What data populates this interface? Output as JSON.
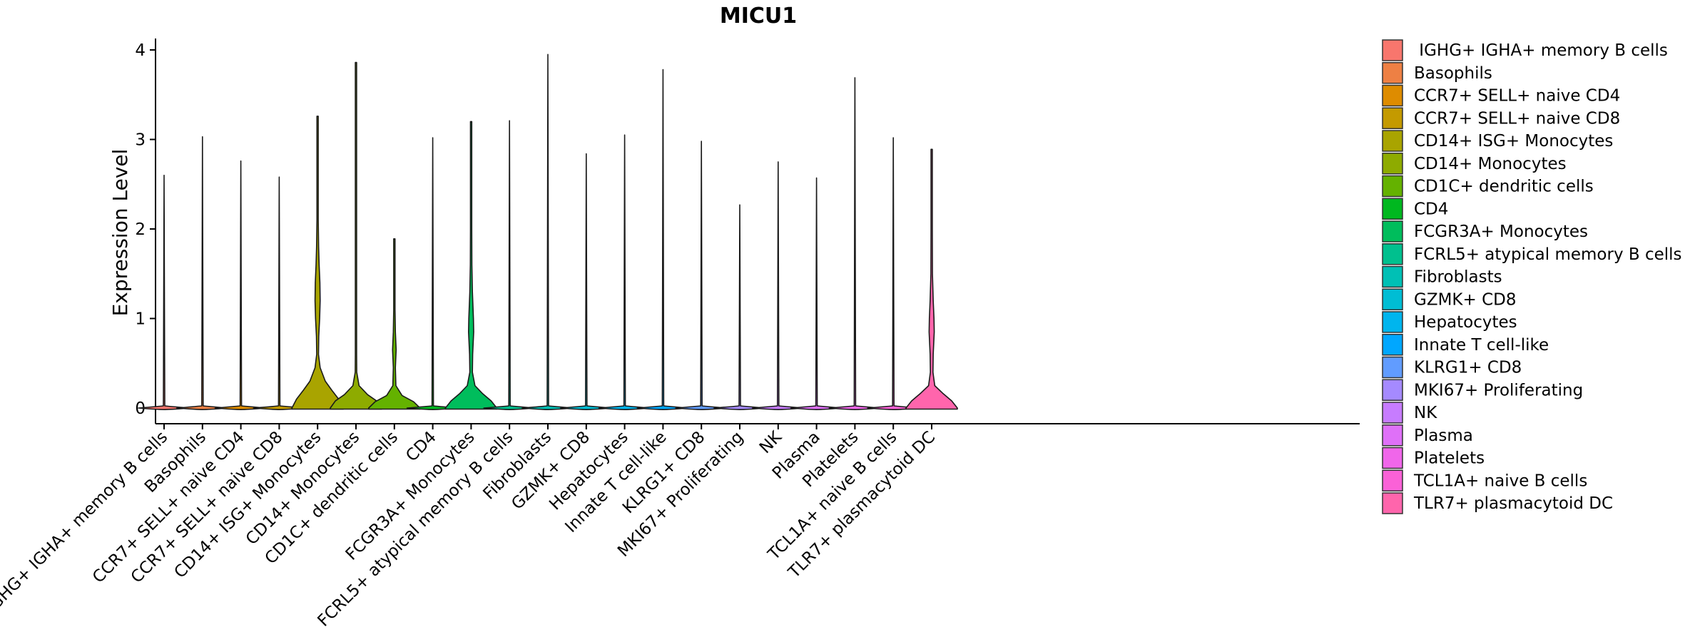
{
  "chart_data": {
    "type": "violin",
    "title": "MICU1",
    "xlabel": "",
    "ylabel": "Expression Level",
    "ylim": [
      -0.2,
      4.15
    ],
    "yticks": [
      0,
      1,
      2,
      3,
      4
    ],
    "legend_position": "right",
    "categories": [
      {
        "name": " IGHG+ IGHA+ memory B cells",
        "color": "#F8766D",
        "max": 2.6,
        "shape": []
      },
      {
        "name": "Basophils",
        "color": "#EE8044",
        "max": 3.03,
        "shape": []
      },
      {
        "name": "CCR7+ SELL+ naive CD4",
        "color": "#DE8C00",
        "max": 2.76,
        "shape": []
      },
      {
        "name": "CCR7+ SELL+ naive CD8",
        "color": "#C49A00",
        "max": 2.58,
        "shape": []
      },
      {
        "name": "CD14+ ISG+ Monocytes",
        "color": "#A9A400",
        "max": 3.26,
        "shape": [
          [
            0,
            1.0
          ],
          [
            0.1,
            0.82
          ],
          [
            0.2,
            0.55
          ],
          [
            0.3,
            0.3
          ],
          [
            0.45,
            0.1
          ],
          [
            0.6,
            0.035
          ],
          [
            0.8,
            0.045
          ],
          [
            1.0,
            0.08
          ],
          [
            1.2,
            0.1
          ],
          [
            1.4,
            0.09
          ],
          [
            1.6,
            0.06
          ],
          [
            1.8,
            0.04
          ],
          [
            2.1,
            0.02
          ],
          [
            2.5,
            0.01
          ],
          [
            3.0,
            0.004
          ],
          [
            3.26,
            0.0
          ]
        ]
      },
      {
        "name": "CD14+ Monocytes",
        "color": "#8EAB00",
        "max": 3.86,
        "shape": [
          [
            0,
            1.0
          ],
          [
            0.08,
            0.8
          ],
          [
            0.15,
            0.45
          ],
          [
            0.25,
            0.12
          ],
          [
            0.4,
            0.03
          ],
          [
            0.6,
            0.02
          ],
          [
            1.0,
            0.015
          ],
          [
            1.5,
            0.012
          ],
          [
            2.0,
            0.008
          ],
          [
            3.0,
            0.003
          ],
          [
            3.86,
            0.0
          ]
        ]
      },
      {
        "name": "CD1C+ dendritic cells",
        "color": "#64B200",
        "max": 1.89,
        "shape": [
          [
            0,
            1.0
          ],
          [
            0.07,
            0.75
          ],
          [
            0.14,
            0.3
          ],
          [
            0.25,
            0.06
          ],
          [
            0.45,
            0.04
          ],
          [
            0.65,
            0.07
          ],
          [
            0.85,
            0.04
          ],
          [
            1.1,
            0.02
          ],
          [
            1.5,
            0.01
          ],
          [
            1.89,
            0.0
          ]
        ]
      },
      {
        "name": "CD4",
        "color": "#00B81F",
        "max": 3.02,
        "shape": []
      },
      {
        "name": "FCGR3A+ Monocytes",
        "color": "#00BD5C",
        "max": 3.2,
        "shape": [
          [
            0,
            1.0
          ],
          [
            0.08,
            0.78
          ],
          [
            0.16,
            0.45
          ],
          [
            0.25,
            0.15
          ],
          [
            0.4,
            0.05
          ],
          [
            0.6,
            0.06
          ],
          [
            0.85,
            0.1
          ],
          [
            1.0,
            0.09
          ],
          [
            1.3,
            0.05
          ],
          [
            1.6,
            0.03
          ],
          [
            2.0,
            0.015
          ],
          [
            2.6,
            0.006
          ],
          [
            3.2,
            0.0
          ]
        ]
      },
      {
        "name": "FCRL5+ atypical memory B cells",
        "color": "#00C08E",
        "max": 3.21,
        "shape": []
      },
      {
        "name": "Fibroblasts",
        "color": "#00C0B5",
        "max": 3.95,
        "shape": []
      },
      {
        "name": "GZMK+ CD8",
        "color": "#00BDD4",
        "max": 2.84,
        "shape": []
      },
      {
        "name": "Hepatocytes",
        "color": "#00B5EE",
        "max": 3.05,
        "shape": []
      },
      {
        "name": "Innate T cell-like",
        "color": "#00A7FF",
        "max": 3.78,
        "shape": []
      },
      {
        "name": "KLRG1+ CD8",
        "color": "#619CFF",
        "max": 2.98,
        "shape": []
      },
      {
        "name": "MKI67+ Proliferating",
        "color": "#A58AFF",
        "max": 2.27,
        "shape": []
      },
      {
        "name": "NK",
        "color": "#C77CFF",
        "max": 2.75,
        "shape": []
      },
      {
        "name": "Plasma",
        "color": "#DF70F8",
        "max": 2.57,
        "shape": []
      },
      {
        "name": "Platelets",
        "color": "#F066EA",
        "max": 3.69,
        "shape": []
      },
      {
        "name": "TCL1A+ naive B cells",
        "color": "#FB61D7",
        "max": 3.02,
        "shape": []
      },
      {
        "name": "TLR7+ plasmacytoid DC",
        "color": "#FF65AC",
        "max": 2.89,
        "shape": [
          [
            0,
            1.0
          ],
          [
            0.08,
            0.78
          ],
          [
            0.16,
            0.45
          ],
          [
            0.25,
            0.12
          ],
          [
            0.4,
            0.05
          ],
          [
            0.6,
            0.06
          ],
          [
            0.85,
            0.1
          ],
          [
            1.0,
            0.09
          ],
          [
            1.2,
            0.06
          ],
          [
            1.5,
            0.03
          ],
          [
            2.0,
            0.012
          ],
          [
            2.5,
            0.004
          ],
          [
            2.89,
            0.0
          ]
        ]
      }
    ]
  }
}
